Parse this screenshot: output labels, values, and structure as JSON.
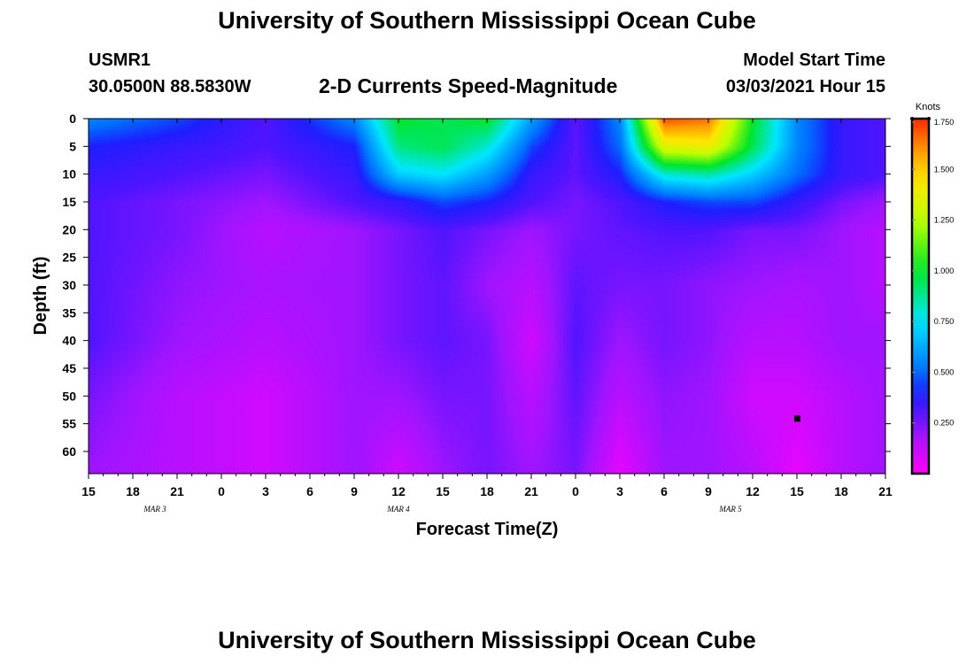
{
  "header": {
    "title": "University of Southern Mississippi Ocean Cube",
    "station_id": "USMR1",
    "coordinates": "30.0500N 88.5830W",
    "plot_title": "2-D Currents Speed-Magnitude",
    "model_start_label": "Model Start Time",
    "model_start_value": "03/03/2021 Hour 15"
  },
  "footer": {
    "title": "University of Southern Mississippi Ocean Cube"
  },
  "chart_data": {
    "type": "heatmap",
    "title": "2-D Currents Speed-Magnitude",
    "xlabel": "Forecast Time(Z)",
    "ylabel": "Depth (ft)",
    "x_ticks": [
      "15",
      "18",
      "21",
      "0",
      "3",
      "6",
      "9",
      "12",
      "15",
      "18",
      "21",
      "0",
      "3",
      "6",
      "9",
      "12",
      "15",
      "18",
      "21"
    ],
    "date_labels": [
      {
        "text": "MAR 3",
        "hour_index": 1.5
      },
      {
        "text": "MAR 4",
        "hour_index": 7
      },
      {
        "text": "MAR 5",
        "hour_index": 14.5
      }
    ],
    "y_ticks": [
      "0",
      "5",
      "10",
      "15",
      "20",
      "25",
      "30",
      "35",
      "40",
      "45",
      "50",
      "55",
      "60"
    ],
    "ylim": [
      0,
      64
    ],
    "colorbar": {
      "unit": "Knots",
      "min": 0,
      "max": 1.75,
      "tick_labels": [
        "1.750",
        "1.500",
        "1.250",
        "1.000",
        "0.750",
        "0.500",
        "0.250"
      ],
      "tick_values": [
        1.75,
        1.5,
        1.25,
        1.0,
        0.75,
        0.5,
        0.25
      ]
    },
    "depth_grid": [
      0,
      5,
      10,
      15,
      20,
      30,
      40,
      50,
      64
    ],
    "time_grid": [
      0,
      2,
      4,
      6,
      7,
      8,
      9,
      10,
      11,
      12,
      13,
      14,
      15,
      16,
      17,
      18
    ],
    "speed_knots": [
      [
        0.55,
        0.45,
        0.3,
        0.55,
        1.0,
        0.95,
        1.0,
        0.6,
        0.28,
        0.55,
        1.7,
        1.65,
        1.0,
        0.55,
        0.35,
        0.3
      ],
      [
        0.4,
        0.35,
        0.3,
        0.4,
        0.9,
        0.95,
        0.8,
        0.45,
        0.28,
        0.5,
        1.35,
        1.4,
        0.95,
        0.55,
        0.35,
        0.3
      ],
      [
        0.35,
        0.3,
        0.25,
        0.35,
        0.7,
        0.75,
        0.6,
        0.35,
        0.28,
        0.4,
        0.8,
        0.85,
        0.7,
        0.5,
        0.35,
        0.3
      ],
      [
        0.3,
        0.25,
        0.2,
        0.3,
        0.35,
        0.45,
        0.4,
        0.3,
        0.25,
        0.3,
        0.4,
        0.45,
        0.45,
        0.35,
        0.25,
        0.2
      ],
      [
        0.3,
        0.25,
        0.15,
        0.2,
        0.25,
        0.3,
        0.25,
        0.2,
        0.25,
        0.28,
        0.3,
        0.3,
        0.25,
        0.25,
        0.2,
        0.15
      ],
      [
        0.3,
        0.22,
        0.18,
        0.2,
        0.25,
        0.28,
        0.2,
        0.15,
        0.28,
        0.25,
        0.25,
        0.22,
        0.2,
        0.18,
        0.2,
        0.15
      ],
      [
        0.3,
        0.2,
        0.15,
        0.2,
        0.25,
        0.28,
        0.25,
        0.1,
        0.3,
        0.2,
        0.25,
        0.22,
        0.15,
        0.15,
        0.2,
        0.2
      ],
      [
        0.25,
        0.15,
        0.1,
        0.2,
        0.2,
        0.25,
        0.25,
        0.15,
        0.28,
        0.15,
        0.22,
        0.2,
        0.1,
        0.1,
        0.15,
        0.2
      ],
      [
        0.2,
        0.15,
        0.1,
        0.2,
        0.1,
        0.2,
        0.25,
        0.2,
        0.25,
        0.05,
        0.2,
        0.2,
        0.15,
        0.05,
        0.15,
        0.2
      ]
    ],
    "marker": {
      "hour_index": 16,
      "depth_ft": 54
    }
  }
}
